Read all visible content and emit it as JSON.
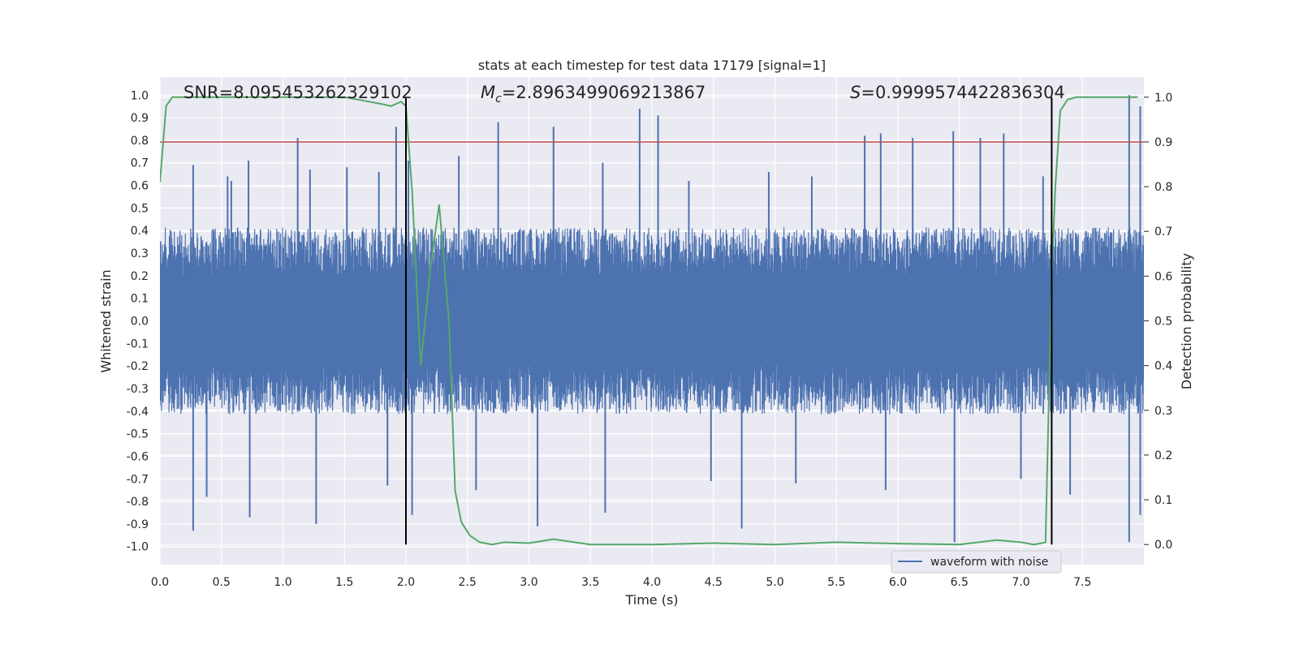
{
  "chart_data": {
    "type": "line",
    "title": "stats at each timestep for test data 17179 [signal=1]",
    "xlabel": "Time (s)",
    "ylabel": "Whitened strain",
    "y2label": "Detection probability",
    "xlim": [
      0,
      8
    ],
    "ylim": [
      -1.08,
      1.08
    ],
    "y2lim": [
      -0.045,
      1.045
    ],
    "x_ticks": [
      "0.0",
      "0.5",
      "1.0",
      "1.5",
      "2.0",
      "2.5",
      "3.0",
      "3.5",
      "4.0",
      "4.5",
      "5.0",
      "5.5",
      "6.0",
      "6.5",
      "7.0",
      "7.5"
    ],
    "y_ticks": [
      "1.0",
      "0.9",
      "0.8",
      "0.7",
      "0.6",
      "0.5",
      "0.4",
      "0.3",
      "0.2",
      "0.1",
      "0.0",
      "-0.1",
      "-0.2",
      "-0.3",
      "-0.4",
      "-0.5",
      "-0.6",
      "-0.7",
      "-0.8",
      "-0.9",
      "-1.0"
    ],
    "y2_ticks": [
      "1.0",
      "0.9",
      "0.8",
      "0.7",
      "0.6",
      "0.5",
      "0.4",
      "0.3",
      "0.2",
      "0.1",
      "0.0"
    ],
    "annotations": {
      "snr": "SNR=8.095453262329102",
      "mc_symbol": "M",
      "mc_subscript": "c",
      "mc_value": "=2.8963499069213867",
      "s_symbol": "S",
      "s_value": "=0.9999574422836304"
    },
    "threshold": {
      "axis": "y2",
      "value": 0.9,
      "color": "#c44e52"
    },
    "vertical_markers": [
      2.0,
      7.25
    ],
    "waveform": {
      "name": "waveform with noise",
      "color": "#4c72b0",
      "core_amplitude": 0.36,
      "spikes": [
        [
          0.27,
          0.69
        ],
        [
          0.55,
          0.64
        ],
        [
          0.58,
          0.62
        ],
        [
          0.72,
          0.71
        ],
        [
          1.12,
          0.81
        ],
        [
          1.22,
          0.67
        ],
        [
          1.52,
          0.68
        ],
        [
          1.78,
          0.66
        ],
        [
          1.92,
          0.86
        ],
        [
          2.02,
          0.71
        ],
        [
          2.43,
          0.73
        ],
        [
          2.75,
          0.88
        ],
        [
          3.2,
          0.86
        ],
        [
          3.6,
          0.7
        ],
        [
          3.9,
          0.94
        ],
        [
          4.05,
          0.91
        ],
        [
          4.3,
          0.62
        ],
        [
          4.95,
          0.66
        ],
        [
          5.3,
          0.64
        ],
        [
          5.73,
          0.82
        ],
        [
          5.86,
          0.83
        ],
        [
          6.12,
          0.81
        ],
        [
          6.45,
          0.84
        ],
        [
          6.67,
          0.81
        ],
        [
          6.86,
          0.83
        ],
        [
          7.18,
          0.64
        ],
        [
          7.88,
          1.0
        ],
        [
          7.97,
          0.95
        ],
        [
          0.27,
          -0.93
        ],
        [
          0.38,
          -0.78
        ],
        [
          0.73,
          -0.87
        ],
        [
          1.27,
          -0.9
        ],
        [
          1.85,
          -0.73
        ],
        [
          2.05,
          -0.86
        ],
        [
          2.57,
          -0.75
        ],
        [
          3.07,
          -0.91
        ],
        [
          3.62,
          -0.85
        ],
        [
          4.48,
          -0.71
        ],
        [
          4.73,
          -0.92
        ],
        [
          5.17,
          -0.72
        ],
        [
          5.9,
          -0.75
        ],
        [
          6.46,
          -0.98
        ],
        [
          7.0,
          -0.7
        ],
        [
          7.4,
          -0.77
        ],
        [
          7.88,
          -0.98
        ],
        [
          7.97,
          -0.86
        ]
      ]
    },
    "detection_probability": {
      "color": "#55a868",
      "x": [
        0.0,
        0.05,
        0.1,
        0.2,
        0.5,
        1.0,
        1.5,
        1.7,
        1.8,
        1.88,
        1.96,
        2.0,
        2.05,
        2.12,
        2.2,
        2.27,
        2.35,
        2.4,
        2.45,
        2.52,
        2.6,
        2.7,
        2.8,
        3.0,
        3.2,
        3.5,
        4.0,
        4.5,
        5.0,
        5.5,
        6.0,
        6.5,
        6.8,
        7.0,
        7.1,
        7.15,
        7.2,
        7.25,
        7.28,
        7.32,
        7.38,
        7.45,
        7.6,
        7.95
      ],
      "y": [
        0.81,
        0.98,
        1.0,
        1.0,
        1.0,
        1.0,
        1.0,
        0.99,
        0.985,
        0.98,
        0.99,
        0.98,
        0.79,
        0.4,
        0.62,
        0.76,
        0.5,
        0.12,
        0.05,
        0.02,
        0.005,
        0.0,
        0.005,
        0.003,
        0.012,
        0.0,
        0.0,
        0.003,
        0.0,
        0.005,
        0.002,
        0.0,
        0.01,
        0.005,
        0.0,
        0.002,
        0.005,
        0.6,
        0.8,
        0.97,
        0.995,
        1.0,
        1.0,
        1.0
      ]
    }
  }
}
